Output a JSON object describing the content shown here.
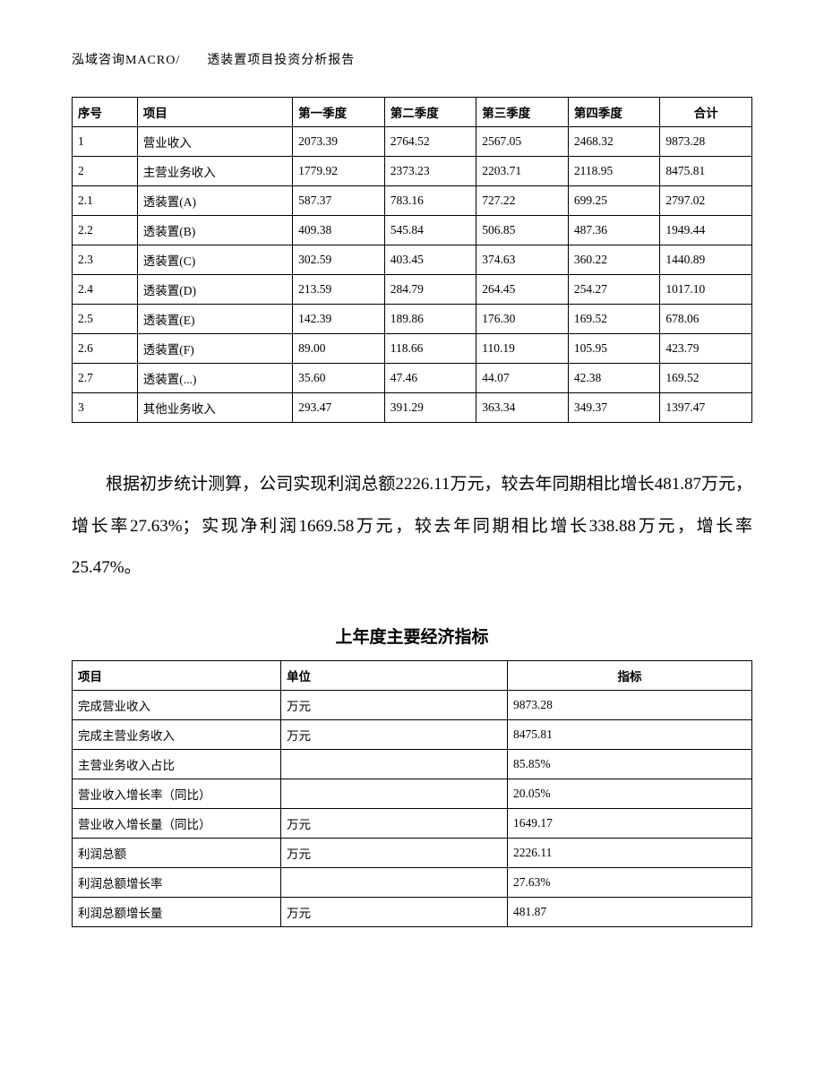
{
  "header": "泓域咨询MACRO/　　透装置项目投资分析报告",
  "table1": {
    "columns": [
      "序号",
      "项目",
      "第一季度",
      "第二季度",
      "第三季度",
      "第四季度",
      "合计"
    ],
    "col_align": [
      "left",
      "left",
      "left",
      "left",
      "left",
      "left",
      "center"
    ],
    "rows": [
      [
        "1",
        "营业收入",
        "2073.39",
        "2764.52",
        "2567.05",
        "2468.32",
        "9873.28"
      ],
      [
        "2",
        "主营业务收入",
        "1779.92",
        "2373.23",
        "2203.71",
        "2118.95",
        "8475.81"
      ],
      [
        "2.1",
        "透装置(A)",
        "587.37",
        "783.16",
        "727.22",
        "699.25",
        "2797.02"
      ],
      [
        "2.2",
        "透装置(B)",
        "409.38",
        "545.84",
        "506.85",
        "487.36",
        "1949.44"
      ],
      [
        "2.3",
        "透装置(C)",
        "302.59",
        "403.45",
        "374.63",
        "360.22",
        "1440.89"
      ],
      [
        "2.4",
        "透装置(D)",
        "213.59",
        "284.79",
        "264.45",
        "254.27",
        "1017.10"
      ],
      [
        "2.5",
        "透装置(E)",
        "142.39",
        "189.86",
        "176.30",
        "169.52",
        "678.06"
      ],
      [
        "2.6",
        "透装置(F)",
        "89.00",
        "118.66",
        "110.19",
        "105.95",
        "423.79"
      ],
      [
        "2.7",
        "透装置(...)",
        "35.60",
        "47.46",
        "44.07",
        "42.38",
        "169.52"
      ],
      [
        "3",
        "其他业务收入",
        "293.47",
        "391.29",
        "363.34",
        "349.37",
        "1397.47"
      ]
    ]
  },
  "paragraph": "根据初步统计测算，公司实现利润总额2226.11万元，较去年同期相比增长481.87万元，增长率27.63%；实现净利润1669.58万元，较去年同期相比增长338.88万元，增长率25.47%。",
  "section_title": "上年度主要经济指标",
  "table2": {
    "columns": [
      "项目",
      "单位",
      "指标"
    ],
    "rows": [
      [
        "完成营业收入",
        "万元",
        "9873.28"
      ],
      [
        "完成主营业务收入",
        "万元",
        "8475.81"
      ],
      [
        "主营业务收入占比",
        "",
        "85.85%"
      ],
      [
        "营业收入增长率（同比）",
        "",
        "20.05%"
      ],
      [
        "营业收入增长量（同比）",
        "万元",
        "1649.17"
      ],
      [
        "利润总额",
        "万元",
        "2226.11"
      ],
      [
        "利润总额增长率",
        "",
        "27.63%"
      ],
      [
        "利润总额增长量",
        "万元",
        "481.87"
      ]
    ]
  },
  "style": {
    "text_color": "#000000",
    "border_color": "#000000",
    "background_color": "#ffffff",
    "body_font_size_pt": 10,
    "paragraph_font_size_pt": 14
  }
}
